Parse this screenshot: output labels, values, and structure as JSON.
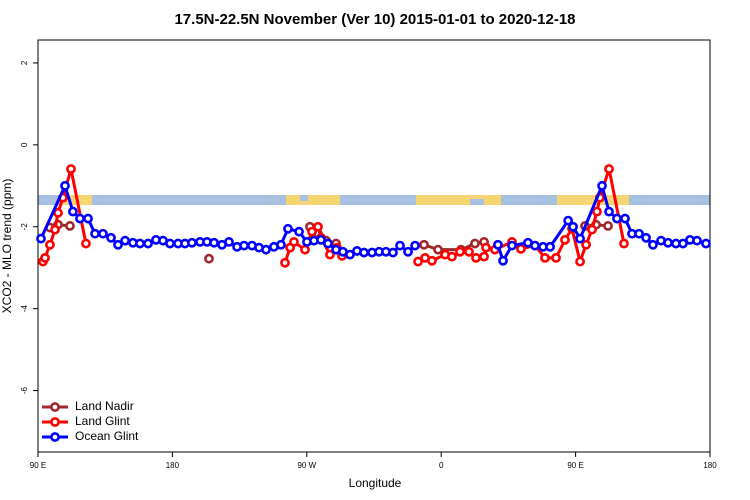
{
  "chart_data": {
    "type": "line",
    "title": "17.5N-22.5N November (Ver 10)   2015-01-01 to 2020-12-18",
    "xlabel": "Longitude",
    "ylabel": "XCO2 - MLO trend (ppm)",
    "xlim": [
      90,
      540
    ],
    "ylim": [
      -7.5,
      2.56
    ],
    "xticks": [
      {
        "value": 90,
        "label": "90 E"
      },
      {
        "value": 180,
        "label": "180"
      },
      {
        "value": 270,
        "label": "90 W"
      },
      {
        "value": 360,
        "label": "0"
      },
      {
        "value": 450,
        "label": "90 E"
      },
      {
        "value": 540,
        "label": "180"
      }
    ],
    "yticks": [
      2,
      0,
      -2,
      -4,
      -6
    ],
    "grid": false,
    "legend": "bottom-left",
    "series": [
      {
        "name": "Land Nadir",
        "color": "#a0282d",
        "x": [
          98.0,
          103.4,
          111.4,
          150,
          204.5,
          240,
          272.1,
          277.5,
          282.9,
          289.6,
          320,
          348.5,
          357.9,
          373.3,
          382.6,
          388.7,
          420,
          456.3,
          463.7,
          471.7
        ],
        "values": [
          -2.02,
          -1.95,
          -1.98,
          null,
          -2.78,
          null,
          -2.0,
          -2.17,
          -2.34,
          -2.41,
          null,
          -2.44,
          -2.56,
          -2.56,
          -2.41,
          -2.37,
          null,
          -1.98,
          -1.95,
          -1.98
        ]
      },
      {
        "name": "Land Glint",
        "color": "#ff0000",
        "x": [
          93.3,
          94.7,
          98.0,
          101.4,
          103.4,
          106.7,
          112.1,
          122.1,
          200,
          255.4,
          258.8,
          261.4,
          268.8,
          273.5,
          277.5,
          279.5,
          285.5,
          290.2,
          293.6,
          320,
          344.5,
          349.2,
          353.8,
          362.6,
          367.2,
          372.6,
          378.6,
          383.3,
          388.7,
          390.0,
          396.0,
          407.4,
          413.4,
          422.8,
          429.5,
          436.9,
          442.9,
          447.6,
          453.0,
          457.0,
          461.0,
          464.3,
          466.3,
          472.4,
          482.4
        ],
        "values": [
          -2.85,
          -2.76,
          -2.44,
          -2.07,
          -1.66,
          -1.29,
          -0.59,
          -2.41,
          null,
          -2.88,
          -2.51,
          -2.37,
          -2.56,
          -2.12,
          -2.0,
          -2.27,
          -2.68,
          -2.51,
          -2.71,
          null,
          -2.85,
          -2.76,
          -2.83,
          -2.68,
          -2.73,
          -2.61,
          -2.61,
          -2.76,
          -2.73,
          -2.51,
          -2.56,
          -2.37,
          -2.54,
          -2.46,
          -2.76,
          -2.76,
          -2.32,
          -2.05,
          -2.85,
          -2.44,
          -2.07,
          -1.63,
          -1.29,
          -0.59,
          -2.41
        ]
      },
      {
        "name": "Ocean Glint",
        "color": "#0000ff",
        "x": [
          92.0,
          108.1,
          113.4,
          118.1,
          123.5,
          128.2,
          133.5,
          138.9,
          143.6,
          148.3,
          153.6,
          158.3,
          163.7,
          169.0,
          173.7,
          178.4,
          183.8,
          188.4,
          193.1,
          198.5,
          203.2,
          207.9,
          213.2,
          217.9,
          223.3,
          228.0,
          233.3,
          238.0,
          242.7,
          248.0,
          252.7,
          257.4,
          264.8,
          270.1,
          274.8,
          279.5,
          284.2,
          289.6,
          294.2,
          298.9,
          303.6,
          308.3,
          313.7,
          318.4,
          323.0,
          327.7,
          332.4,
          337.8,
          342.5,
          370,
          398.0,
          401.4,
          407.4,
          418.1,
          422.8,
          428.2,
          432.9,
          445.0,
          448.3,
          453.0,
          467.7,
          472.4,
          477.7,
          483.1,
          487.8,
          492.5,
          497.2,
          501.8,
          507.2,
          511.9,
          517.2,
          521.9,
          526.6,
          531.3,
          537.3
        ],
        "values": [
          -2.29,
          -1.0,
          -1.63,
          -1.8,
          -1.8,
          -2.17,
          -2.17,
          -2.27,
          -2.44,
          -2.34,
          -2.39,
          -2.41,
          -2.41,
          -2.32,
          -2.34,
          -2.41,
          -2.41,
          -2.41,
          -2.39,
          -2.37,
          -2.37,
          -2.39,
          -2.44,
          -2.37,
          -2.49,
          -2.46,
          -2.46,
          -2.51,
          -2.56,
          -2.49,
          -2.44,
          -2.05,
          -2.12,
          -2.37,
          -2.34,
          -2.32,
          -2.41,
          -2.56,
          -2.61,
          -2.68,
          -2.59,
          -2.63,
          -2.63,
          -2.61,
          -2.61,
          -2.63,
          -2.46,
          -2.61,
          -2.46,
          null,
          -2.44,
          -2.83,
          -2.46,
          -2.39,
          -2.46,
          -2.49,
          -2.49,
          -1.85,
          -2.0,
          -2.29,
          -1.0,
          -1.63,
          -1.8,
          -1.8,
          -2.17,
          -2.17,
          -2.27,
          -2.44,
          -2.34,
          -2.39,
          -2.41,
          -2.41,
          -2.32,
          -2.34,
          -2.41
        ]
      }
    ]
  }
}
